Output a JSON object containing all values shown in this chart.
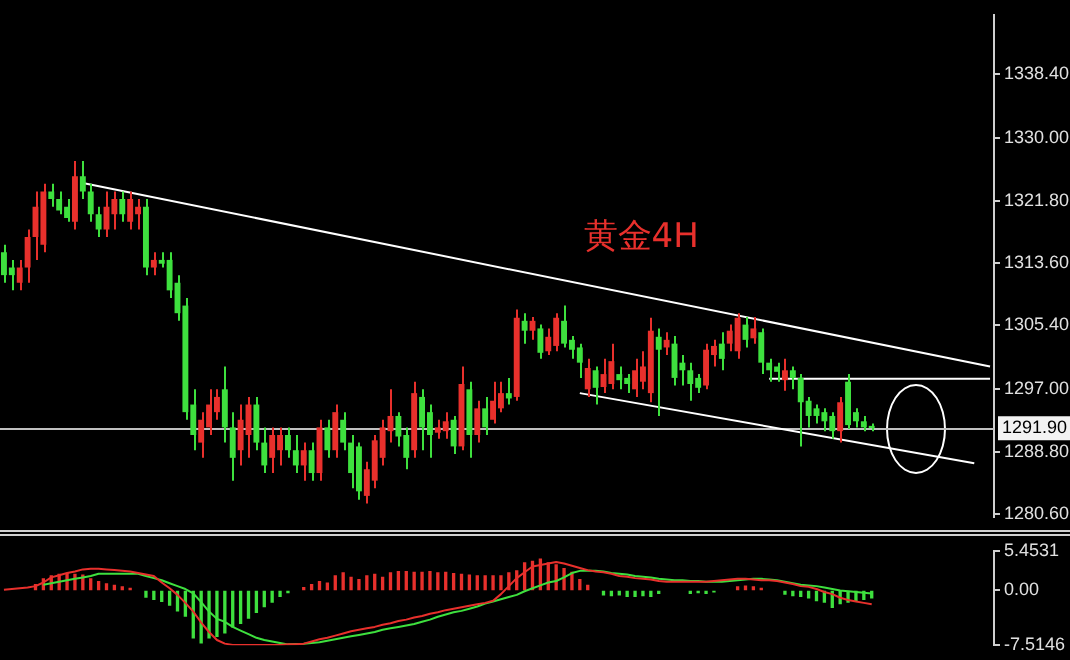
{
  "chart_data": [
    {
      "type": "candlestick",
      "categories": [
        null,
        null,
        null,
        null,
        null,
        null,
        null,
        null,
        null,
        null,
        null,
        null,
        null,
        null,
        null,
        null,
        null,
        null,
        null,
        null,
        null,
        null,
        null,
        null,
        null,
        null,
        null,
        null,
        null,
        null,
        null,
        null,
        null,
        null,
        null,
        null,
        null,
        null,
        null,
        null,
        null,
        null,
        null,
        null,
        null,
        null,
        null,
        null,
        null,
        null,
        null,
        null,
        null,
        null,
        null,
        null,
        null,
        null,
        null,
        null,
        null,
        null,
        null,
        null,
        null,
        null,
        null,
        null,
        null,
        null,
        null,
        null,
        null,
        null,
        null,
        null,
        null,
        null,
        null,
        null,
        null,
        null,
        null,
        null,
        null,
        null,
        null,
        null,
        null,
        null,
        null,
        null,
        null,
        null,
        null,
        null,
        null,
        null,
        null,
        null,
        null,
        null,
        null,
        null,
        null,
        null,
        null,
        null,
        null,
        null,
        null,
        null,
        null,
        null,
        null,
        null,
        null,
        null,
        null,
        null,
        null,
        null,
        null,
        null,
        null,
        null
      ],
      "ohlc": [
        [
          1315,
          1316,
          1311,
          1312
        ],
        [
          1313,
          1314,
          1310,
          1312
        ],
        [
          1311,
          1314,
          1310,
          1313
        ],
        [
          1313,
          1318,
          1311,
          1317
        ],
        [
          1317,
          1323,
          1314,
          1321
        ],
        [
          1316,
          1324,
          1315,
          1323
        ],
        [
          1323,
          1324,
          1321,
          1322
        ],
        [
          1322,
          1323,
          1320,
          1320.5
        ],
        [
          1321,
          1322,
          1319,
          1319.5
        ],
        [
          1319,
          1327,
          1318,
          1325
        ],
        [
          1325,
          1327,
          1322,
          1323
        ],
        [
          1323,
          1324,
          1319,
          1320
        ],
        [
          1320,
          1321,
          1317,
          1318
        ],
        [
          1318,
          1323,
          1317,
          1321
        ],
        [
          1320,
          1323,
          1318,
          1322
        ],
        [
          1322,
          1323,
          1319,
          1320
        ],
        [
          1319,
          1323,
          1318,
          1322
        ],
        [
          1320,
          1322,
          1318,
          1321
        ],
        [
          1321,
          1322,
          1312,
          1313
        ],
        [
          1313,
          1315,
          1312,
          1314
        ],
        [
          1314,
          1315,
          1313,
          1313.5
        ],
        [
          1314,
          1315,
          1309,
          1310
        ],
        [
          1311,
          1312,
          1306,
          1307
        ],
        [
          1308,
          1309,
          1293,
          1294
        ],
        [
          1295,
          1297,
          1289,
          1291
        ],
        [
          1290,
          1294,
          1288,
          1293
        ],
        [
          1292,
          1297,
          1291,
          1295
        ],
        [
          1294,
          1297,
          1293,
          1296
        ],
        [
          1297,
          1300,
          1290,
          1292
        ],
        [
          1292,
          1294,
          1285,
          1288
        ],
        [
          1289,
          1295,
          1287,
          1293
        ],
        [
          1291,
          1296,
          1288,
          1295
        ],
        [
          1295,
          1296,
          1289,
          1290
        ],
        [
          1290,
          1292,
          1286,
          1287
        ],
        [
          1288,
          1292,
          1286,
          1291
        ],
        [
          1289,
          1292,
          1287,
          1291
        ],
        [
          1291,
          1292,
          1288,
          1289
        ],
        [
          1289,
          1291,
          1286,
          1287
        ],
        [
          1287,
          1290,
          1285,
          1289
        ],
        [
          1289,
          1290,
          1285,
          1286
        ],
        [
          1286,
          1293,
          1285,
          1292
        ],
        [
          1292,
          1293,
          1288,
          1289
        ],
        [
          1289,
          1295,
          1288,
          1294
        ],
        [
          1293,
          1294,
          1289,
          1290
        ],
        [
          1290,
          1291,
          1284,
          1286
        ],
        [
          1289.5,
          1290,
          1282.5,
          1283.6
        ],
        [
          1283,
          1287.5,
          1282,
          1286.5
        ],
        [
          1285,
          1291,
          1284,
          1290.3
        ],
        [
          1288,
          1293,
          1287,
          1292
        ],
        [
          1291.5,
          1297,
          1290,
          1293.5
        ],
        [
          1293.5,
          1294,
          1289.5,
          1290.8
        ],
        [
          1291,
          1292,
          1286.5,
          1288
        ],
        [
          1289,
          1298,
          1288,
          1296.5
        ],
        [
          1296,
          1297,
          1289,
          1292
        ],
        [
          1294,
          1295,
          1288,
          1291
        ],
        [
          1291.3,
          1293,
          1290.5,
          1292
        ],
        [
          1291.5,
          1294,
          1290.5,
          1292.8
        ],
        [
          1293,
          1293.5,
          1288.5,
          1289.5
        ],
        [
          1289.5,
          1300,
          1289,
          1297.7
        ],
        [
          1297,
          1298,
          1288,
          1291
        ],
        [
          1291,
          1295.5,
          1290,
          1294.5
        ],
        [
          1294.5,
          1296,
          1291,
          1292
        ],
        [
          1293,
          1298,
          1292.5,
          1295.5
        ],
        [
          1294.5,
          1298,
          1294,
          1296.5
        ],
        [
          1296.5,
          1298.5,
          1295,
          1295.8
        ],
        [
          1296,
          1307.5,
          1295.5,
          1306.4
        ],
        [
          1306,
          1307,
          1303,
          1304.7
        ],
        [
          1304.7,
          1306.5,
          1303.5,
          1306
        ],
        [
          1305,
          1305.5,
          1301,
          1301.8
        ],
        [
          1302,
          1305,
          1301.5,
          1303.9
        ],
        [
          1302.7,
          1307,
          1302,
          1306.4
        ],
        [
          1306,
          1308,
          1302.5,
          1303
        ],
        [
          1303.5,
          1304,
          1301,
          1302.2
        ],
        [
          1302.5,
          1303,
          1298.5,
          1300.5
        ],
        [
          1297,
          1301,
          1296,
          1299.8
        ],
        [
          1299.5,
          1300,
          1295,
          1297.2
        ],
        [
          1297.3,
          1301,
          1296.5,
          1299
        ],
        [
          1297.7,
          1303,
          1297,
          1300.7
        ],
        [
          1299,
          1300,
          1297,
          1298.2
        ],
        [
          1298.5,
          1299,
          1296.5,
          1297.7
        ],
        [
          1297,
          1301,
          1296,
          1299.5
        ],
        [
          1298,
          1302,
          1297,
          1300
        ],
        [
          1296.5,
          1306.4,
          1295.3,
          1304.7
        ],
        [
          1303.9,
          1305,
          1293.5,
          1302.2
        ],
        [
          1302.5,
          1304.5,
          1301.5,
          1303.5
        ],
        [
          1303,
          1304,
          1297.5,
          1298.5
        ],
        [
          1300.5,
          1301.5,
          1297.5,
          1299.5
        ],
        [
          1299.5,
          1300.5,
          1295.5,
          1297.7
        ],
        [
          1298.5,
          1299,
          1296.5,
          1297.2
        ],
        [
          1297.5,
          1303,
          1297,
          1302.2
        ],
        [
          1301.5,
          1303.5,
          1300,
          1302.7
        ],
        [
          1303,
          1304.5,
          1299.5,
          1301
        ],
        [
          1303,
          1305.5,
          1302,
          1304.7
        ],
        [
          1302,
          1307,
          1301,
          1306.4
        ],
        [
          1305.5,
          1306.5,
          1302.5,
          1303.5
        ],
        [
          1303.7,
          1306.5,
          1303,
          1305
        ],
        [
          1304.5,
          1305,
          1299,
          1300.5
        ],
        [
          1300.5,
          1301,
          1298,
          1299.5
        ],
        [
          1300,
          1300.5,
          1298,
          1299.3
        ],
        [
          1298.2,
          1301,
          1296.8,
          1299.5
        ],
        [
          1299.5,
          1300,
          1297,
          1298.5
        ],
        [
          1298.5,
          1299,
          1289.5,
          1295.3
        ],
        [
          1295.5,
          1296,
          1292,
          1293.5
        ],
        [
          1294.5,
          1295,
          1292.5,
          1293.5
        ],
        [
          1294,
          1294.5,
          1291.5,
          1292.8
        ],
        [
          1293.5,
          1294,
          1290.5,
          1291.5
        ],
        [
          1291.5,
          1296,
          1290,
          1295.3
        ],
        [
          1298,
          1299,
          1291.8,
          1292.3
        ],
        [
          1294,
          1294.5,
          1292,
          1292.8
        ],
        [
          1292.8,
          1293.5,
          1291.5,
          1292
        ],
        [
          1292.2,
          1292.5,
          1291.5,
          1291.9
        ],
        null,
        null,
        null,
        null,
        null,
        null,
        null,
        null,
        null,
        null,
        null,
        null,
        null,
        null,
        null
      ],
      "colors": [
        "#3ee03e",
        "#3ee03e",
        "#e8302c",
        "#e8302c",
        "#e8302c",
        "#e8302c",
        "#3ee03e",
        "#3ee03e",
        "#3ee03e",
        "#e8302c",
        "#3ee03e",
        "#3ee03e",
        "#3ee03e",
        "#e8302c",
        "#e8302c",
        "#3ee03e",
        "#e8302c",
        "#e8302c",
        "#3ee03e",
        "#e8302c",
        "#3ee03e",
        "#3ee03e",
        "#3ee03e",
        "#3ee03e",
        "#3ee03e",
        "#e8302c",
        "#e8302c",
        "#e8302c",
        "#3ee03e",
        "#3ee03e",
        "#e8302c",
        "#e8302c",
        "#3ee03e",
        "#3ee03e",
        "#e8302c",
        "#e8302c",
        "#3ee03e",
        "#3ee03e",
        "#e8302c",
        "#3ee03e",
        "#e8302c",
        "#3ee03e",
        "#e8302c",
        "#3ee03e",
        "#3ee03e",
        "#3ee03e",
        "#e8302c",
        "#e8302c",
        "#e8302c",
        "#e8302c",
        "#3ee03e",
        "#3ee03e",
        "#e8302c",
        "#3ee03e",
        "#3ee03e",
        "#e8302c",
        "#e8302c",
        "#3ee03e",
        "#e8302c",
        "#3ee03e",
        "#e8302c",
        "#3ee03e",
        "#e8302c",
        "#e8302c",
        "#3ee03e",
        "#e8302c",
        "#3ee03e",
        "#e8302c",
        "#3ee03e",
        "#e8302c",
        "#e8302c",
        "#3ee03e",
        "#3ee03e",
        "#3ee03e",
        "#e8302c",
        "#3ee03e",
        "#e8302c",
        "#e8302c",
        "#3ee03e",
        "#3ee03e",
        "#e8302c",
        "#e8302c",
        "#e8302c",
        "#3ee03e",
        "#e8302c",
        "#3ee03e",
        "#3ee03e",
        "#3ee03e",
        "#3ee03e",
        "#e8302c",
        "#e8302c",
        "#3ee03e",
        "#e8302c",
        "#e8302c",
        "#3ee03e",
        "#e8302c",
        "#3ee03e",
        "#3ee03e",
        "#3ee03e",
        "#e8302c",
        "#3ee03e",
        "#3ee03e",
        "#3ee03e",
        "#3ee03e",
        "#3ee03e",
        "#3ee03e",
        "#e8302c",
        "#3ee03e",
        "#3ee03e",
        "#3ee03e",
        "#3ee03e",
        null,
        null,
        null,
        null,
        null,
        null,
        null,
        null,
        null,
        null,
        null,
        null,
        null,
        null,
        null
      ],
      "ylim": [
        1280.2,
        1346.2
      ],
      "yticks": [
        {
          "value": 1280.6,
          "label": "1280.60"
        },
        {
          "value": 1288.8,
          "label": "1288.80"
        },
        {
          "value": 1297,
          "label": "1297.00"
        },
        {
          "value": 1305.4,
          "label": "1305.40"
        },
        {
          "value": 1313.6,
          "label": "1313.60"
        },
        {
          "value": 1321.8,
          "label": "1321.80"
        },
        {
          "value": 1330,
          "label": "1330.00"
        },
        {
          "value": 1338.4,
          "label": "1338.40"
        }
      ],
      "tick_labels": "y",
      "grid": false,
      "legend": false,
      "annotations": [
        "黄金4H"
      ],
      "ref_lines": [
        {
          "axis": "y",
          "value": 1291.9,
          "label": "1291.90",
          "color": "#c0c0c0"
        }
      ],
      "series": [
        {
          "type": "line",
          "color": "#ffffff",
          "values": [
            null,
            null,
            null,
            null,
            null,
            null,
            null,
            null,
            null,
            null,
            1324.1,
            null,
            null,
            null,
            null,
            null,
            null,
            null,
            null,
            null,
            null,
            null,
            null,
            null,
            null,
            null,
            null,
            null,
            null,
            null,
            null,
            null,
            null,
            null,
            null,
            null,
            null,
            null,
            null,
            null,
            null,
            null,
            null,
            null,
            null,
            null,
            null,
            null,
            null,
            null,
            null,
            null,
            null,
            null,
            null,
            null,
            null,
            null,
            null,
            null,
            null,
            null,
            null,
            null,
            null,
            null,
            null,
            null,
            null,
            null,
            null,
            null,
            null,
            null,
            null,
            null,
            null,
            null,
            null,
            null,
            null,
            null,
            null,
            null,
            null,
            null,
            null,
            null,
            null,
            null,
            null,
            null,
            null,
            null,
            null,
            null,
            null,
            null,
            null,
            null,
            null,
            null,
            null,
            null,
            null,
            null,
            null,
            null,
            null,
            null,
            null,
            null,
            null,
            null,
            null,
            null,
            null,
            null,
            null,
            null,
            null,
            null,
            null,
            null,
            null,
            1300.0
          ]
        },
        {
          "type": "line",
          "color": "#ffffff",
          "values": [
            null,
            null,
            null,
            null,
            null,
            null,
            null,
            null,
            null,
            null,
            null,
            null,
            null,
            null,
            null,
            null,
            null,
            null,
            null,
            null,
            null,
            null,
            null,
            null,
            null,
            null,
            null,
            null,
            null,
            null,
            null,
            null,
            null,
            null,
            null,
            null,
            null,
            null,
            null,
            null,
            null,
            null,
            null,
            null,
            null,
            null,
            null,
            null,
            null,
            null,
            null,
            null,
            null,
            null,
            null,
            null,
            null,
            null,
            null,
            null,
            null,
            null,
            null,
            null,
            null,
            null,
            null,
            null,
            null,
            null,
            null,
            null,
            null,
            1296.5,
            null,
            null,
            null,
            null,
            null,
            null,
            null,
            null,
            null,
            null,
            null,
            null,
            null,
            null,
            null,
            null,
            null,
            null,
            null,
            null,
            null,
            null,
            null,
            null,
            null,
            null,
            null,
            null,
            null,
            null,
            null,
            null,
            null,
            null,
            null,
            null,
            null,
            null,
            null,
            null,
            null,
            null,
            null,
            null,
            null,
            null,
            null,
            null,
            null,
            1287.3,
            null,
            null
          ]
        },
        {
          "type": "line",
          "color": "#ffffff",
          "values": [
            null,
            null,
            null,
            null,
            null,
            null,
            null,
            null,
            null,
            null,
            null,
            null,
            null,
            null,
            null,
            null,
            null,
            null,
            null,
            null,
            null,
            null,
            null,
            null,
            null,
            null,
            null,
            null,
            null,
            null,
            null,
            null,
            null,
            null,
            null,
            null,
            null,
            null,
            null,
            null,
            null,
            null,
            null,
            null,
            null,
            null,
            null,
            null,
            null,
            null,
            null,
            null,
            null,
            null,
            null,
            null,
            null,
            null,
            null,
            null,
            null,
            null,
            null,
            null,
            null,
            null,
            null,
            null,
            null,
            null,
            null,
            null,
            null,
            null,
            null,
            null,
            null,
            null,
            null,
            null,
            null,
            null,
            null,
            null,
            null,
            null,
            null,
            null,
            null,
            null,
            null,
            null,
            null,
            null,
            null,
            null,
            null,
            1298.4,
            null,
            null,
            null,
            null,
            null,
            null,
            null,
            null,
            null,
            null,
            null,
            null,
            null,
            null,
            null,
            null,
            null,
            null,
            null,
            null,
            null,
            null,
            null,
            null,
            null,
            null,
            null,
            1298.4
          ]
        }
      ]
    },
    {
      "type": "bar",
      "categories": [
        null,
        null,
        null,
        null,
        null,
        null,
        null,
        null,
        null,
        null,
        null,
        null,
        null,
        null,
        null,
        null,
        null,
        null,
        null,
        null,
        null,
        null,
        null,
        null,
        null,
        null,
        null,
        null,
        null,
        null,
        null,
        null,
        null,
        null,
        null,
        null,
        null,
        null,
        null,
        null,
        null,
        null,
        null,
        null,
        null,
        null,
        null,
        null,
        null,
        null,
        null,
        null,
        null,
        null,
        null,
        null,
        null,
        null,
        null,
        null,
        null,
        null,
        null,
        null,
        null,
        null,
        null,
        null,
        null,
        null,
        null,
        null,
        null,
        null,
        null,
        null,
        null,
        null,
        null,
        null,
        null,
        null,
        null,
        null,
        null,
        null,
        null,
        null,
        null,
        null,
        null,
        null,
        null,
        null,
        null,
        null,
        null,
        null,
        null,
        null,
        null,
        null,
        null,
        null,
        null,
        null,
        null,
        null,
        null,
        null,
        null,
        null,
        null,
        null,
        null,
        null,
        null,
        null,
        null,
        null,
        null,
        null,
        null,
        null,
        null,
        null
      ],
      "ylim": [
        -7.5146,
        5.4531
      ],
      "yticks": [
        5.4531,
        {
          "value": 0,
          "label": "0.00"
        },
        -7.5146
      ],
      "tick_labels": "y",
      "grid": false,
      "legend": false,
      "series": [
        {
          "color": "#e8302c",
          "values": [
            null,
            null,
            null,
            null,
            0.8,
            1.6,
            2.0,
            2.2,
            2.3,
            2.2,
            2.1,
            1.6,
            1.2,
            0.9,
            0.7,
            0.5,
            0.3,
            null,
            null,
            null,
            null,
            null,
            null,
            null,
            null,
            null,
            null,
            null,
            null,
            null,
            null,
            null,
            null,
            null,
            null,
            null,
            null,
            null,
            0.4,
            0.8,
            1.2,
            1.0,
            2.0,
            2.4,
            1.8,
            1.5,
            2.0,
            2.2,
            1.8,
            2.4,
            2.6,
            2.6,
            2.5,
            2.5,
            2.6,
            2.4,
            2.5,
            2.3,
            2.2,
            2.1,
            2.0,
            2.0,
            2.0,
            2.0,
            2.4,
            2.7,
            3.8,
            4.0,
            4.3,
            3.8,
            3.5,
            3.0,
            2.5,
            1.5,
            0.7,
            null,
            null,
            null,
            null,
            null,
            null,
            null,
            null,
            null,
            null,
            null,
            null,
            null,
            null,
            null,
            null,
            null,
            null,
            0.5,
            0.6,
            0.5,
            0.3,
            null,
            null,
            null,
            null,
            null,
            null,
            null,
            null,
            null,
            null,
            null,
            null,
            null,
            null,
            null,
            null,
            null,
            null,
            null,
            null,
            null,
            null,
            null,
            null,
            null,
            null,
            null,
            null,
            null
          ]
        },
        {
          "color": "#3ee03e",
          "values": [
            null,
            null,
            null,
            null,
            null,
            null,
            null,
            null,
            null,
            null,
            null,
            null,
            null,
            null,
            null,
            null,
            null,
            null,
            -0.9,
            -1.2,
            -1.5,
            -2.0,
            -2.8,
            -3.5,
            -6.5,
            -7.2,
            -6.5,
            -6.3,
            -5.8,
            -5.0,
            -4.5,
            -3.8,
            -3.0,
            -2.2,
            -1.6,
            -0.8,
            -0.3,
            null,
            null,
            null,
            null,
            null,
            null,
            null,
            null,
            null,
            null,
            null,
            null,
            null,
            null,
            null,
            null,
            null,
            null,
            null,
            null,
            null,
            null,
            null,
            null,
            null,
            null,
            null,
            null,
            null,
            null,
            null,
            null,
            null,
            null,
            null,
            null,
            null,
            null,
            null,
            -0.6,
            -0.7,
            -0.6,
            -0.8,
            -0.8,
            -0.7,
            -0.8,
            -0.4,
            null,
            null,
            null,
            -0.4,
            -0.3,
            -0.4,
            -0.2,
            null,
            null,
            null,
            null,
            null,
            null,
            null,
            null,
            -0.5,
            -0.7,
            -0.8,
            -1.0,
            -1.4,
            -1.6,
            -2.3,
            -1.8,
            -1.6,
            -1.4,
            -1.2,
            -1.0,
            null,
            null,
            null,
            null,
            null,
            null,
            null,
            null,
            null,
            null,
            null,
            null,
            null,
            null,
            null
          ]
        },
        {
          "type": "line",
          "color": "#e8302c",
          "values": [
            0.1,
            0.2,
            0.3,
            0.4,
            0.6,
            1.1,
            1.8,
            2.1,
            2.4,
            2.6,
            2.9,
            3.0,
            3.0,
            2.9,
            2.8,
            2.7,
            2.6,
            2.4,
            2.2,
            2.0,
            1.1,
            0.3,
            -0.6,
            -1.7,
            -2.9,
            -4.4,
            -5.7,
            -6.8,
            -7.3,
            -7.5,
            -7.5,
            -7.5,
            -7.5,
            -7.5,
            -7.5,
            -7.5,
            -7.4,
            -7.4,
            -7.3,
            -7.0,
            -6.7,
            -6.5,
            -6.2,
            -5.9,
            -5.6,
            -5.4,
            -5.2,
            -5.0,
            -4.7,
            -4.5,
            -4.2,
            -4.0,
            -3.7,
            -3.5,
            -3.2,
            -3.0,
            -2.7,
            -2.5,
            -2.3,
            -2.1,
            -1.9,
            -1.7,
            -1.4,
            -0.5,
            0.6,
            1.7,
            2.5,
            3.3,
            3.5,
            3.7,
            3.9,
            3.7,
            3.4,
            3.1,
            2.8,
            2.6,
            2.5,
            2.3,
            2.0,
            1.9,
            1.7,
            1.6,
            1.5,
            1.3,
            1.2,
            1.2,
            1.2,
            1.2,
            1.2,
            1.2,
            1.3,
            1.4,
            1.5,
            1.6,
            1.6,
            1.5,
            1.4,
            1.4,
            1.3,
            1.1,
            0.9,
            0.6,
            0.5,
            0.2,
            -0.2,
            -0.5,
            -1.0,
            -1.3,
            -1.5,
            -1.7,
            -1.9,
            null,
            null,
            null,
            null,
            null,
            null,
            null,
            null,
            null,
            null,
            null,
            null,
            null,
            null,
            null
          ]
        },
        {
          "type": "line",
          "color": "#3ee03e",
          "values": [
            null,
            null,
            null,
            null,
            null,
            0.8,
            1.0,
            1.2,
            1.4,
            1.6,
            1.8,
            2.0,
            2.3,
            2.3,
            2.3,
            2.3,
            2.3,
            2.3,
            2.0,
            1.7,
            1.4,
            1.0,
            0.6,
            0.2,
            -0.4,
            -1.6,
            -2.9,
            -3.9,
            -4.3,
            -5.0,
            -5.5,
            -6.0,
            -6.5,
            -6.8,
            -7.0,
            -7.2,
            -7.4,
            null,
            -7.3,
            -7.2,
            -7.1,
            -6.9,
            -6.7,
            -6.5,
            -6.3,
            -6.1,
            -5.9,
            -5.7,
            -5.4,
            -5.2,
            -5.0,
            -4.8,
            -4.6,
            -4.3,
            -4.0,
            -3.6,
            -3.3,
            -3.0,
            -2.8,
            -2.5,
            -2.2,
            -1.8,
            -1.5,
            -1.2,
            -0.9,
            -0.6,
            -0.1,
            0.3,
            0.7,
            1.1,
            1.3,
            1.8,
            2.4,
            2.7,
            2.7,
            2.7,
            2.6,
            2.4,
            2.3,
            2.2,
            2.0,
            1.9,
            1.8,
            1.6,
            1.5,
            1.4,
            1.4,
            1.3,
            1.3,
            1.2,
            1.2,
            1.2,
            1.3,
            1.4,
            1.5,
            1.6,
            1.6,
            1.5,
            1.4,
            1.2,
            1.0,
            0.8,
            0.7,
            0.6,
            0.4,
            0.2,
            0.0,
            -0.1,
            -0.2,
            -0.3,
            -0.4,
            null,
            null,
            null,
            null,
            null,
            null,
            null,
            null,
            null,
            null,
            null,
            null,
            null,
            null,
            null
          ]
        }
      ]
    }
  ]
}
